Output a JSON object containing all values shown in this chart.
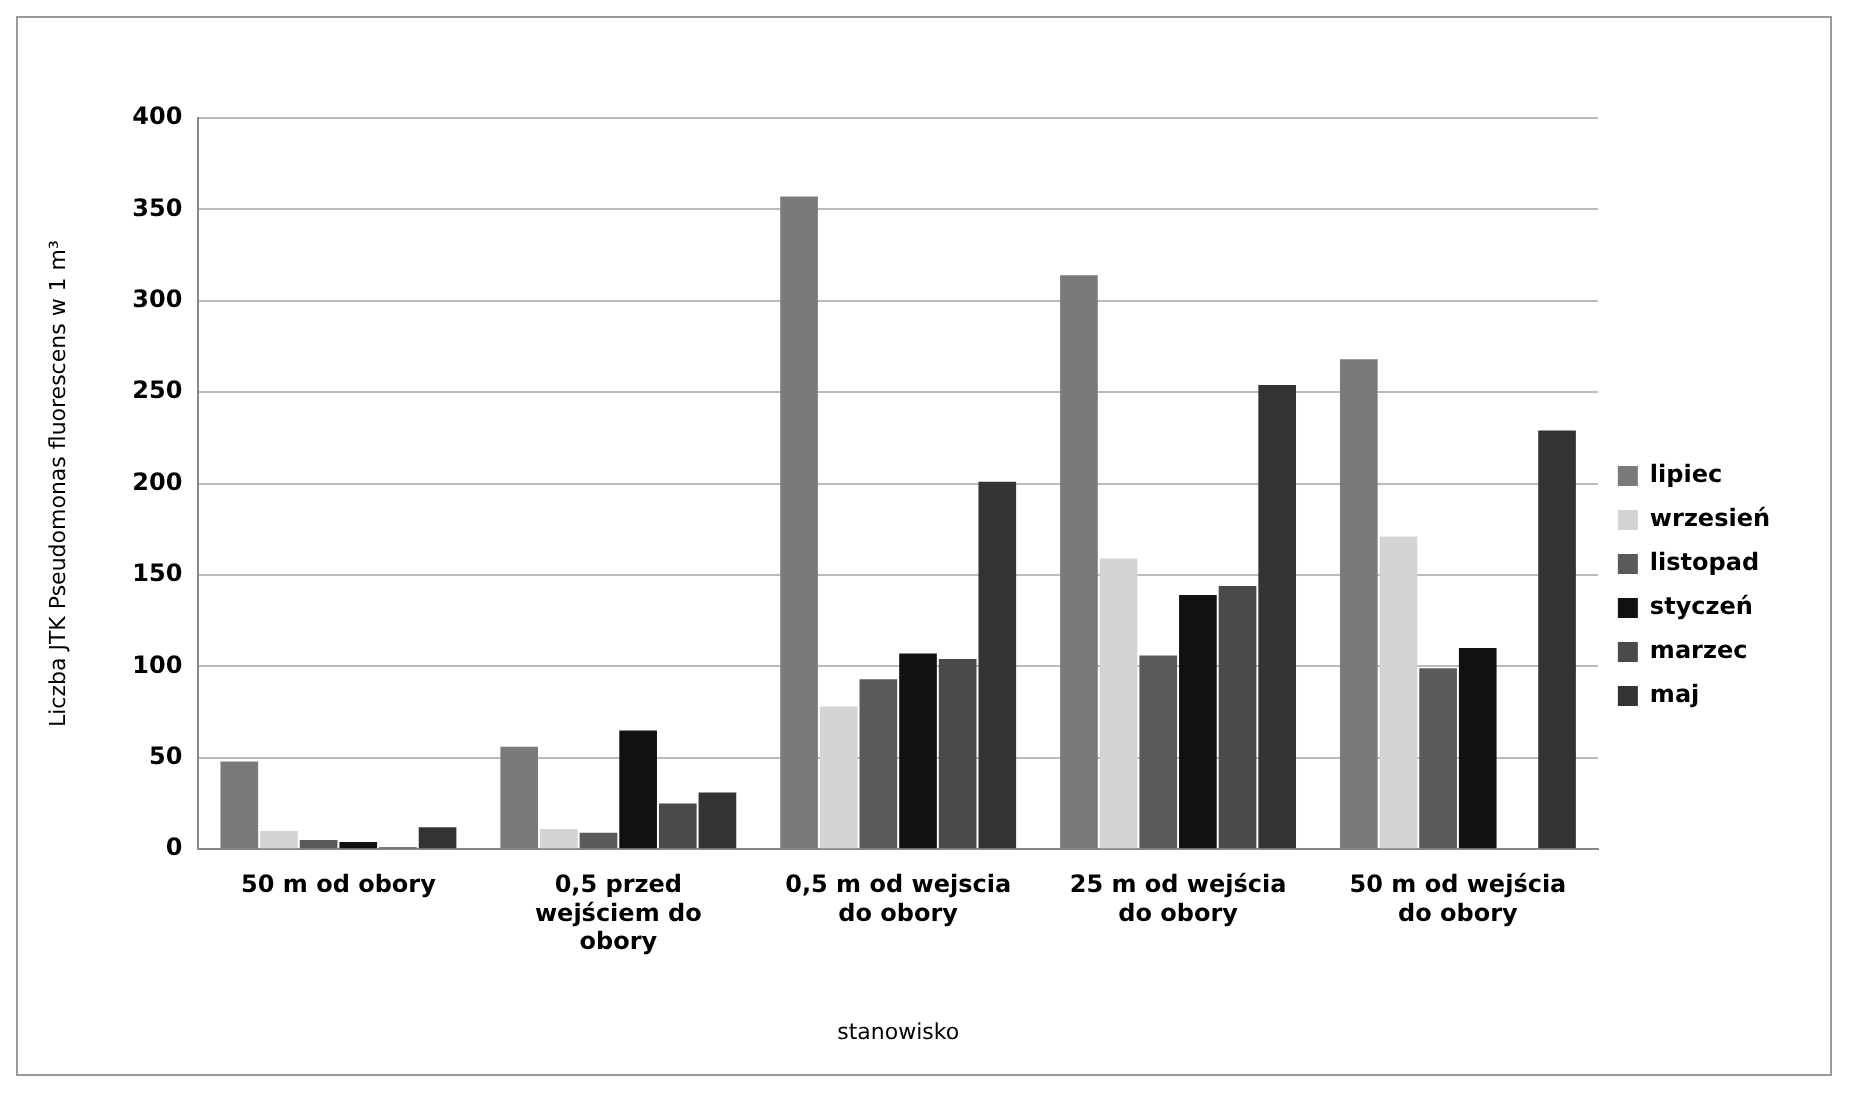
{
  "chart_data": {
    "type": "bar",
    "xlabel": "stanowisko",
    "ylabel": "Liczba JTK Pseudomonas fluorescens w 1 m³",
    "categories": [
      "50 m od obory",
      "0,5 przed wejściem do obory",
      "0,5 m od wejscia do obory",
      "25 m od wejścia do obory",
      "50 m od wejścia do obory"
    ],
    "series": [
      {
        "name": "lipiec",
        "color": "#7a7a7a",
        "values": [
          48,
          56,
          357,
          314,
          268
        ]
      },
      {
        "name": "wrzesień",
        "color": "#d4d4d4",
        "values": [
          10,
          11,
          78,
          159,
          171
        ]
      },
      {
        "name": "listopad",
        "color": "#5a5a5a",
        "values": [
          5,
          9,
          93,
          106,
          99
        ]
      },
      {
        "name": "styczeń",
        "color": "#111111",
        "values": [
          4,
          65,
          107,
          139,
          110
        ]
      },
      {
        "name": "marzec",
        "color": "#4a4a4a",
        "values": [
          1,
          25,
          104,
          144,
          0
        ]
      },
      {
        "name": "maj",
        "color": "#333333",
        "values": [
          12,
          31,
          201,
          254,
          229
        ]
      }
    ],
    "ylim": [
      0,
      400
    ],
    "yticks": [
      0,
      50,
      100,
      150,
      200,
      250,
      300,
      350,
      400
    ],
    "grid": "y",
    "legend": "right"
  }
}
